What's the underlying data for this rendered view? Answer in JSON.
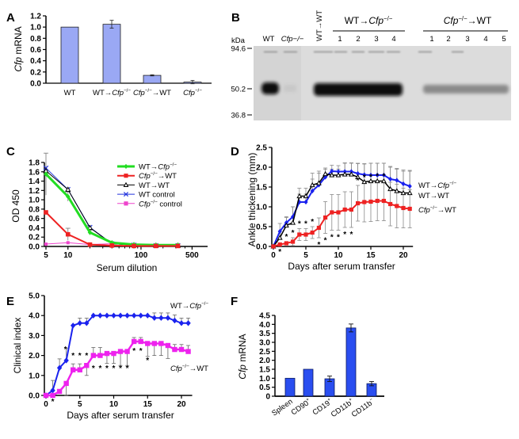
{
  "panels": {
    "A": {
      "label": "A"
    },
    "B": {
      "label": "B",
      "kda_unit": "kDa",
      "markers": [
        "94.6",
        "50.2",
        "36.8"
      ],
      "lanes_single": [
        "WT",
        "Cfp−/−"
      ],
      "lane_rotated": "WT→WT",
      "group1": {
        "title": "WT→Cfp−/−",
        "lanes": [
          "1",
          "2",
          "3",
          "4"
        ]
      },
      "group2": {
        "title": "Cfp−/−→WT",
        "lanes": [
          "1",
          "2",
          "3",
          "4",
          "5"
        ]
      }
    },
    "C": {
      "label": "C"
    },
    "D": {
      "label": "D"
    },
    "E": {
      "label": "E"
    },
    "F": {
      "label": "F"
    }
  },
  "chart_data": [
    {
      "panel": "A",
      "type": "bar",
      "ylabel": "Cfp mRNA",
      "ylim": [
        0,
        1.2
      ],
      "yticks": [
        "0.0",
        "0.2",
        "0.4",
        "0.6",
        "0.8",
        "1.0",
        "1.2"
      ],
      "categories": [
        "WT",
        "WT→Cfp−/−",
        "Cfp−/−→WT",
        "Cfp−/−"
      ],
      "values": [
        1.0,
        1.05,
        0.14,
        0.02
      ],
      "errors": [
        0,
        0.07,
        0.01,
        0.03
      ],
      "color": "#9aa8f4"
    },
    {
      "panel": "C",
      "type": "line",
      "xlabel": "Serum dilution",
      "ylabel": "OD 450",
      "xscale": "log",
      "xlim": [
        5,
        500
      ],
      "ylim": [
        0,
        1.8
      ],
      "xticks": [
        "5",
        "10",
        "100",
        "500"
      ],
      "yticks": [
        "0.0",
        "0.2",
        "0.4",
        "0.6",
        "0.8",
        "1.0",
        "1.2",
        "1.4",
        "1.6",
        "1.8"
      ],
      "legend_position": "top-right",
      "x": [
        5,
        10,
        20,
        40,
        80,
        160,
        320
      ],
      "series": [
        {
          "name": "WT→Cfp−/−",
          "color": "#22dd22",
          "marker": "diamond",
          "values": [
            1.55,
            1.07,
            0.3,
            0.08,
            0.04,
            0.03,
            0.03
          ]
        },
        {
          "name": "Cfp−/−→WT",
          "color": "#ee2222",
          "marker": "square",
          "values": [
            0.73,
            0.26,
            0.04,
            0.02,
            0.01,
            0.01,
            0.01
          ]
        },
        {
          "name": "WT→WT",
          "color": "#000000",
          "marker": "triangle",
          "values": [
            1.62,
            1.22,
            0.4,
            0.06,
            0.03,
            0.02,
            0.02
          ]
        },
        {
          "name": "WT control",
          "color": "#2233dd",
          "marker": "x",
          "values": [
            1.68,
            1.22,
            0.41,
            0.06,
            0.03,
            0.02,
            0.02
          ]
        },
        {
          "name": "Cfp−/− control",
          "color": "#ee44cc",
          "marker": "square",
          "values": [
            0.05,
            0.08,
            0.04,
            0.06,
            0.03,
            0.02,
            0.02
          ]
        }
      ]
    },
    {
      "panel": "D",
      "type": "line",
      "xlabel": "Days after serum transfer",
      "ylabel": "Ankle thickening (mm)",
      "xlim": [
        0,
        21
      ],
      "ylim": [
        0,
        2.5
      ],
      "xticks": [
        "0",
        "5",
        "10",
        "15",
        "20"
      ],
      "yticks": [
        "0.0",
        "0.5",
        "1.0",
        "1.5",
        "2.0",
        "2.5"
      ],
      "x": [
        0,
        1,
        2,
        3,
        4,
        5,
        6,
        7,
        8,
        9,
        10,
        11,
        12,
        13,
        14,
        15,
        16,
        17,
        18,
        19,
        20,
        21
      ],
      "series": [
        {
          "name": "WT→Cfp−/−",
          "color": "#1a22ee",
          "marker": "diamond",
          "values": [
            0,
            0.38,
            0.6,
            0.75,
            1.12,
            1.12,
            1.4,
            1.55,
            1.75,
            1.9,
            1.89,
            1.89,
            1.89,
            1.84,
            1.81,
            1.8,
            1.8,
            1.8,
            1.7,
            1.67,
            1.58,
            1.52
          ],
          "errors": [
            0,
            0.2,
            0.15,
            0.25,
            0.2,
            0.2,
            0.3,
            0.3,
            0.2,
            0.15,
            0.15,
            0.22,
            0.22,
            0.25,
            0.28,
            0.3,
            0.3,
            0.3,
            0.32,
            0.3,
            0.35,
            0.4
          ]
        },
        {
          "name": "WT→WT",
          "color": "#000000",
          "marker": "triangle",
          "values": [
            0,
            0.22,
            0.53,
            0.6,
            1.27,
            1.27,
            1.55,
            1.6,
            1.83,
            1.8,
            1.8,
            1.82,
            1.82,
            1.75,
            1.63,
            1.65,
            1.65,
            1.65,
            1.45,
            1.4,
            1.35,
            1.35
          ],
          "errors": [
            0,
            0.1,
            0.2,
            0.4,
            0.2,
            0.2,
            0.3,
            0.3,
            0.15,
            0.15,
            0.15,
            0.28,
            0.28,
            0.35,
            0.45,
            0.45,
            0.45,
            0.45,
            0.55,
            0.55,
            0.55,
            0.55
          ]
        },
        {
          "name": "Cfp−/−→WT",
          "color": "#ee2222",
          "marker": "square",
          "values": [
            0,
            0.05,
            0.08,
            0.12,
            0.3,
            0.3,
            0.35,
            0.47,
            0.73,
            0.86,
            0.86,
            0.93,
            0.93,
            1.09,
            1.12,
            1.13,
            1.15,
            1.15,
            1.07,
            1.02,
            0.97,
            0.95
          ],
          "errors": [
            0,
            0.04,
            0.04,
            0.1,
            0.15,
            0.15,
            0.15,
            0.25,
            0.4,
            0.45,
            0.45,
            0.45,
            0.45,
            0.45,
            0.5,
            0.5,
            0.5,
            0.5,
            0.55,
            0.55,
            0.5,
            0.48
          ]
        }
      ],
      "significance": {
        "symbol": "*",
        "above": [
          2,
          3,
          4,
          5,
          6,
          13,
          14,
          15,
          16,
          17
        ],
        "below": [
          1,
          7,
          8,
          9,
          10,
          11,
          12
        ]
      }
    },
    {
      "panel": "E",
      "type": "line",
      "xlabel": "Days after serum transfer",
      "ylabel": "Clinical index",
      "xlim": [
        0,
        21
      ],
      "ylim": [
        0,
        5
      ],
      "xticks": [
        "0",
        "5",
        "10",
        "15",
        "20"
      ],
      "yticks": [
        "0.0",
        "1.0",
        "2.0",
        "3.0",
        "4.0",
        "5.0"
      ],
      "x": [
        0,
        1,
        2,
        3,
        4,
        5,
        6,
        7,
        8,
        9,
        10,
        11,
        12,
        13,
        14,
        15,
        16,
        17,
        18,
        19,
        20,
        21
      ],
      "series": [
        {
          "name": "WT→Cfp−/−",
          "color": "#1a22ee",
          "marker": "diamond",
          "values": [
            0,
            0.25,
            1.38,
            1.75,
            3.5,
            3.62,
            3.62,
            4,
            4,
            4,
            4,
            4,
            4,
            4,
            4,
            4,
            3.88,
            3.88,
            3.88,
            3.75,
            3.62,
            3.62
          ],
          "errors": [
            0,
            0.5,
            0.45,
            0.6,
            0,
            0.25,
            0.25,
            0,
            0,
            0,
            0,
            0,
            0,
            0,
            0,
            0,
            0.25,
            0.25,
            0.25,
            0.28,
            0.25,
            0.25
          ]
        },
        {
          "name": "Cfp−/−→WT",
          "color": "#ee22ee",
          "marker": "square",
          "values": [
            0,
            0,
            0.2,
            0.6,
            1.28,
            1.28,
            1.5,
            2,
            2,
            2.1,
            2.1,
            2.2,
            2.2,
            2.7,
            2.7,
            2.6,
            2.6,
            2.6,
            2.5,
            2.3,
            2.3,
            2.2
          ],
          "errors": [
            0,
            0,
            0,
            0.6,
            0.3,
            0.3,
            0.5,
            0.4,
            0.4,
            0.5,
            0.5,
            0.7,
            0.7,
            0.2,
            0.2,
            0.65,
            0.6,
            0.6,
            0.65,
            0.25,
            0.25,
            0.3
          ]
        }
      ],
      "significance": {
        "symbol": "*",
        "above": [
          3,
          15
        ],
        "below": [
          1,
          4,
          5,
          6,
          7,
          8,
          9,
          10,
          11,
          12,
          13,
          14
        ],
        "below_extra": [
          15
        ]
      }
    },
    {
      "panel": "F",
      "type": "bar",
      "ylabel": "Cfp mRNA",
      "ylim": [
        0,
        4.5
      ],
      "yticks": [
        "0",
        "0.5",
        "1.0",
        "1.5",
        "2.0",
        "2.5",
        "3.0",
        "3.5",
        "4.0",
        "4.5"
      ],
      "categories": [
        "Spleen",
        "CD90+",
        "CD19+",
        "CD11b+",
        "CD11b−"
      ],
      "values": [
        1.0,
        1.5,
        0.97,
        3.8,
        0.7
      ],
      "errors": [
        0,
        0,
        0.15,
        0.22,
        0.12
      ],
      "color": "#2a4ef0"
    }
  ]
}
